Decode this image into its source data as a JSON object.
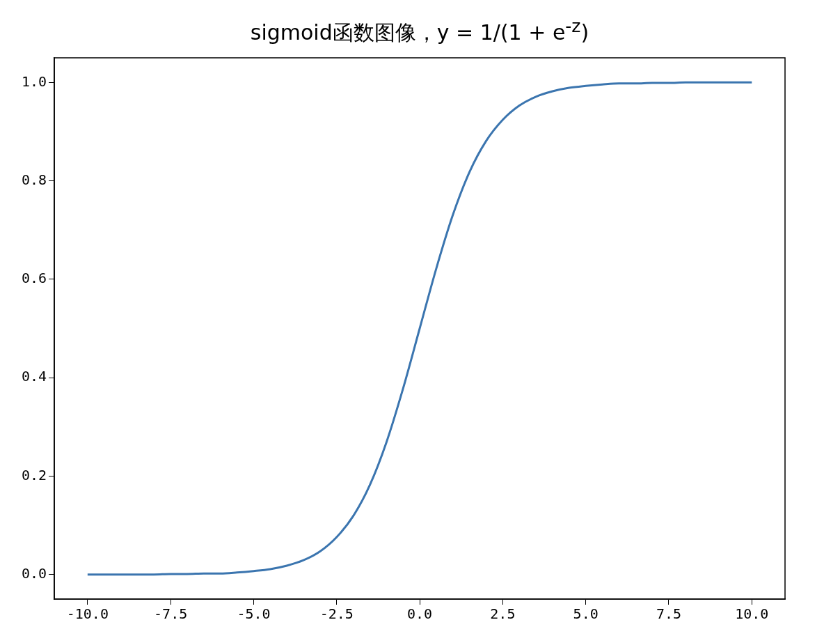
{
  "chart_data": {
    "type": "line",
    "title": "sigmoid函数图像，y = 1/(1 + e$^{-z}$)",
    "x": [
      -10,
      -9.5,
      -9,
      -8.5,
      -8,
      -7.5,
      -7,
      -6.5,
      -6,
      -5.5,
      -5,
      -4.5,
      -4,
      -3.5,
      -3,
      -2.5,
      -2,
      -1.5,
      -1,
      -0.5,
      0,
      0.5,
      1,
      1.5,
      2,
      2.5,
      3,
      3.5,
      4,
      4.5,
      5,
      5.5,
      6,
      6.5,
      7,
      7.5,
      8,
      8.5,
      9,
      9.5,
      10
    ],
    "series": [
      {
        "color": "#3b75af",
        "values": [
          0.0,
          0.0,
          0.0,
          0.0,
          0.0,
          0.001,
          0.001,
          0.002,
          0.002,
          0.004,
          0.007,
          0.011,
          0.018,
          0.029,
          0.047,
          0.076,
          0.119,
          0.182,
          0.269,
          0.378,
          0.5,
          0.622,
          0.731,
          0.818,
          0.881,
          0.924,
          0.953,
          0.971,
          0.982,
          0.989,
          0.993,
          0.996,
          0.998,
          0.998,
          0.999,
          0.999,
          1.0,
          1.0,
          1.0,
          1.0,
          1.0
        ]
      }
    ],
    "xlim": [
      -11,
      11
    ],
    "xticks": [
      {
        "value": -10,
        "label": "-10.0"
      },
      {
        "value": -7.5,
        "label": "-7.5"
      },
      {
        "value": -5,
        "label": "-5.0"
      },
      {
        "value": -2.5,
        "label": "-2.5"
      },
      {
        "value": 0,
        "label": "0.0"
      },
      {
        "value": 2.5,
        "label": "2.5"
      },
      {
        "value": 5,
        "label": "5.0"
      },
      {
        "value": 7.5,
        "label": "7.5"
      },
      {
        "value": 10,
        "label": "10.0"
      }
    ],
    "ylim": [
      -0.05,
      1.05
    ],
    "yticks": [
      {
        "value": 0,
        "label": "0.0"
      },
      {
        "value": 0.2,
        "label": "0.2"
      },
      {
        "value": 0.4,
        "label": "0.4"
      },
      {
        "value": 0.6,
        "label": "0.6"
      },
      {
        "value": 0.8,
        "label": "0.8"
      },
      {
        "value": 1,
        "label": "1.0"
      }
    ]
  }
}
